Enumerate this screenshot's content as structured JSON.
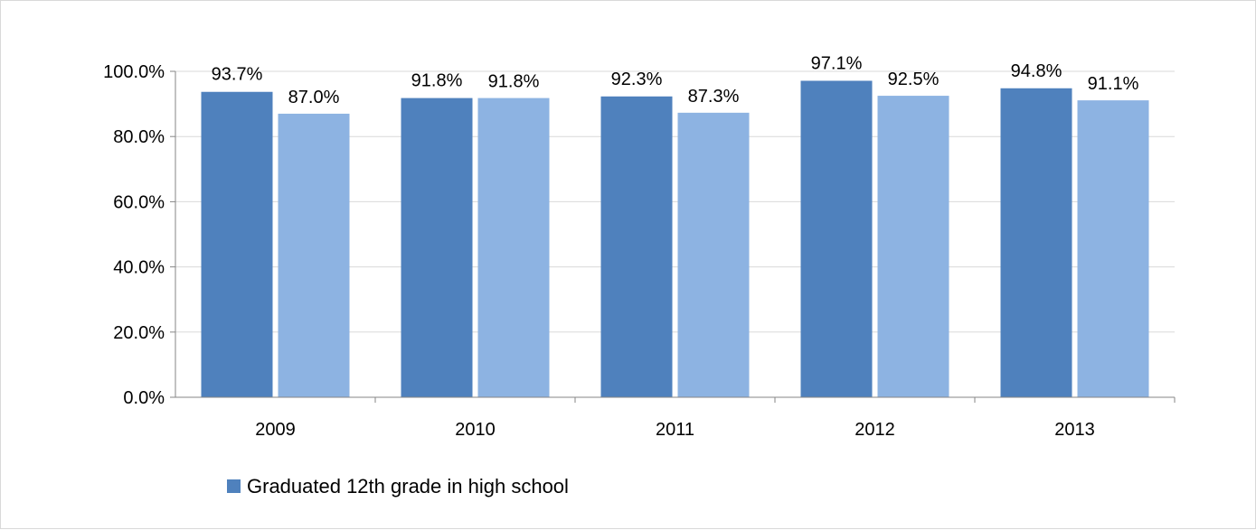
{
  "chart_data": {
    "type": "bar",
    "categories": [
      "2009",
      "2010",
      "2011",
      "2012",
      "2013"
    ],
    "series": [
      {
        "name": "Graduated 12th grade in high school",
        "color": "#4f81bd",
        "values": [
          93.7,
          91.8,
          92.3,
          97.1,
          94.8
        ]
      },
      {
        "name": "",
        "color": "#8db3e2",
        "values": [
          87.0,
          91.8,
          87.3,
          92.5,
          91.1
        ]
      }
    ],
    "value_labels": [
      [
        "93.7%",
        "91.8%",
        "92.3%",
        "97.1%",
        "94.8%"
      ],
      [
        "87.0%",
        "91.8%",
        "87.3%",
        "92.5%",
        "91.1%"
      ]
    ],
    "y_ticks": [
      0,
      20,
      40,
      60,
      80,
      100
    ],
    "y_tick_labels": [
      "0.0%",
      "20.0%",
      "40.0%",
      "60.0%",
      "80.0%",
      "100.0%"
    ],
    "ylim": [
      0,
      100
    ],
    "grid": true,
    "legend": {
      "position": "bottom-left",
      "entries": [
        "Graduated 12th grade in high school"
      ]
    },
    "title": "",
    "xlabel": "",
    "ylabel": ""
  }
}
